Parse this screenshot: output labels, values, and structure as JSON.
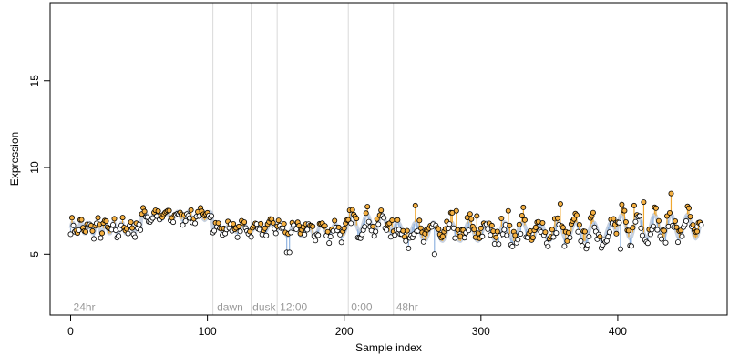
{
  "chart_data": {
    "type": "scatter",
    "title": "",
    "xlabel": "Sample index",
    "ylabel": "Expression",
    "xlim": [
      -15,
      480
    ],
    "ylim": [
      1.5,
      19.5
    ],
    "x_ticks": [
      0,
      100,
      200,
      300,
      400
    ],
    "y_ticks": [
      5,
      10,
      15
    ],
    "grid": false,
    "legend": "none",
    "colors": {
      "point_fill_low": "#ffffff",
      "point_fill_high": "#f5b041",
      "point_stroke": "#000000",
      "line_blue": "#8fb3e0",
      "line_orange": "#f0a830",
      "fit_band": "#b9c6d8",
      "vline": "#d9d9d9",
      "annotation": "#9a9a9a"
    },
    "vertical_markers": [
      {
        "x": 104,
        "label": ""
      },
      {
        "x": 132,
        "label": ""
      },
      {
        "x": 151,
        "label": ""
      },
      {
        "x": 203,
        "label": ""
      },
      {
        "x": 236,
        "label": ""
      }
    ],
    "annotations": [
      {
        "x": 2,
        "label": "24hr"
      },
      {
        "x": 107,
        "label": "dawn"
      },
      {
        "x": 133,
        "label": "dusk"
      },
      {
        "x": 153,
        "label": "12:00"
      },
      {
        "x": 205,
        "label": "0:00"
      },
      {
        "x": 238,
        "label": "48hr"
      }
    ],
    "annotation_y": 2.0,
    "series": [
      {
        "segments": [
          {
            "x0": 0,
            "x1": 52,
            "base": 6.5,
            "amp": 0.35,
            "period": 6,
            "jitter": 0.35
          },
          {
            "x0": 52,
            "x1": 104,
            "base": 7.2,
            "amp": 0.25,
            "period": 8,
            "jitter": 0.35
          },
          {
            "x0": 104,
            "x1": 151,
            "base": 6.5,
            "amp": 0.25,
            "period": 10,
            "jitter": 0.3
          },
          {
            "x0": 151,
            "x1": 203,
            "base": 6.4,
            "amp": 0.35,
            "period": 10,
            "jitter": 0.45
          },
          {
            "x0": 203,
            "x1": 236,
            "base": 6.8,
            "amp": 0.5,
            "period": 11,
            "jitter": 0.5
          },
          {
            "x0": 236,
            "x1": 400,
            "base": 6.3,
            "amp": 0.55,
            "period": 13,
            "jitter": 0.6
          },
          {
            "x0": 400,
            "x1": 462,
            "base": 6.6,
            "amp": 0.7,
            "period": 12,
            "jitter": 0.6
          }
        ],
        "spikes": [
          {
            "x": 252,
            "y": 7.8
          },
          {
            "x": 282,
            "y": 7.5
          },
          {
            "x": 297,
            "y": 7.2
          },
          {
            "x": 320,
            "y": 7.5
          },
          {
            "x": 331,
            "y": 7.7
          },
          {
            "x": 358,
            "y": 7.9
          },
          {
            "x": 412,
            "y": 7.8
          },
          {
            "x": 419,
            "y": 8.0
          },
          {
            "x": 439,
            "y": 8.5
          },
          {
            "x": 158,
            "y": 5.1
          },
          {
            "x": 160,
            "y": 5.1
          },
          {
            "x": 266,
            "y": 5.0
          },
          {
            "x": 402,
            "y": 5.3
          }
        ]
      }
    ]
  }
}
